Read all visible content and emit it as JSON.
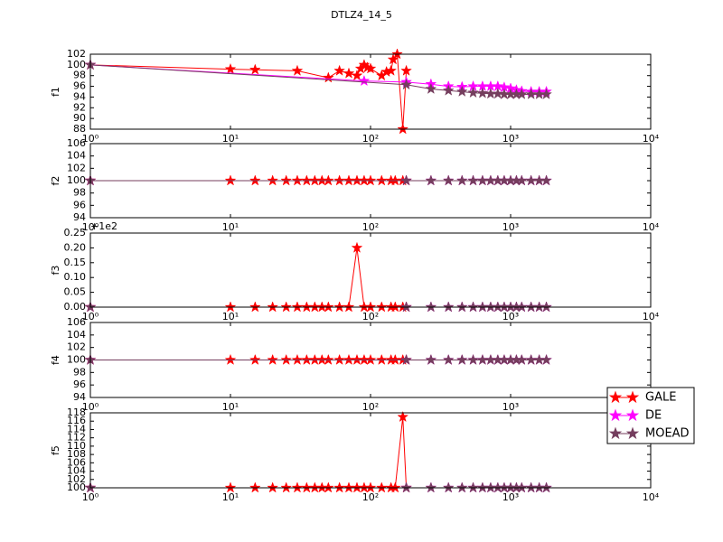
{
  "chart_data": [
    {
      "type": "line",
      "title": "DTLZ4_14_5",
      "ylabel": "f1",
      "xscale": "log",
      "xlim": [
        1,
        10000
      ],
      "xticks": [
        {
          "value": 1,
          "label": "10⁰"
        },
        {
          "value": 10,
          "label": "10¹"
        },
        {
          "value": 100,
          "label": "10²"
        },
        {
          "value": 1000,
          "label": "10³"
        },
        {
          "value": 10000,
          "label": "10⁴"
        }
      ],
      "ylim": [
        88,
        102
      ],
      "yticks": [
        88,
        90,
        92,
        94,
        96,
        98,
        100,
        102
      ],
      "series": [
        {
          "name": "GALE",
          "color": "#ff0000",
          "x": [
            1,
            10,
            15,
            30,
            50,
            60,
            70,
            80,
            85,
            90,
            95,
            100,
            120,
            130,
            140,
            145,
            155,
            170,
            180
          ],
          "values": [
            100,
            99.2,
            99.1,
            98.9,
            97.6,
            98.9,
            98.4,
            98,
            99.3,
            100,
            99.5,
            99.3,
            98,
            98.7,
            98.9,
            101,
            102,
            88,
            98.9
          ]
        },
        {
          "name": "DE",
          "color": "#ff00ff",
          "x": [
            1,
            90,
            180,
            270,
            360,
            450,
            540,
            630,
            720,
            810,
            900,
            1000,
            1100,
            1200,
            1400,
            1600,
            1800
          ],
          "values": [
            100,
            97,
            96.8,
            96.4,
            96,
            95.9,
            96,
            96,
            96,
            96,
            95.8,
            95.6,
            95.3,
            95.1,
            95,
            95,
            95
          ]
        },
        {
          "name": "MOEAD",
          "color": "#753e5e",
          "x": [
            1,
            180,
            270,
            360,
            450,
            540,
            630,
            720,
            810,
            900,
            1000,
            1100,
            1200,
            1400,
            1600,
            1800
          ],
          "values": [
            100,
            96.3,
            95.5,
            95.2,
            95,
            94.8,
            94.7,
            94.6,
            94.6,
            94.5,
            94.5,
            94.5,
            94.5,
            94.5,
            94.5,
            94.5
          ]
        }
      ]
    },
    {
      "type": "line",
      "ylabel": "f2",
      "xscale": "log",
      "xlim": [
        1,
        10000
      ],
      "xticks": [
        {
          "value": 1,
          "label": "10⁰"
        },
        {
          "value": 10,
          "label": "10¹"
        },
        {
          "value": 100,
          "label": "10²"
        },
        {
          "value": 1000,
          "label": "10³"
        },
        {
          "value": 10000,
          "label": "10⁴"
        }
      ],
      "ylim": [
        94,
        106
      ],
      "yticks": [
        94,
        96,
        98,
        100,
        102,
        104,
        106
      ],
      "series": [
        {
          "name": "GALE",
          "color": "#ff0000",
          "x": [
            1,
            10,
            15,
            20,
            25,
            30,
            35,
            40,
            45,
            50,
            60,
            70,
            80,
            90,
            100,
            120,
            140,
            150,
            170,
            180
          ],
          "values": [
            100,
            100,
            100,
            100,
            100,
            100,
            100,
            100,
            100,
            100,
            100,
            100,
            100,
            100,
            100,
            100,
            100,
            100,
            100,
            100
          ]
        },
        {
          "name": "DE",
          "color": "#ff00ff",
          "x": [
            1,
            180,
            270,
            360,
            450,
            540,
            630,
            720,
            810,
            900,
            1000,
            1100,
            1200,
            1400,
            1600,
            1800
          ],
          "values": [
            100,
            100,
            100,
            100,
            100,
            100,
            100,
            100,
            100,
            100,
            100,
            100,
            100,
            100,
            100,
            100
          ]
        },
        {
          "name": "MOEAD",
          "color": "#753e5e",
          "x": [
            1,
            180,
            270,
            360,
            450,
            540,
            630,
            720,
            810,
            900,
            1000,
            1100,
            1200,
            1400,
            1600,
            1800
          ],
          "values": [
            100,
            100,
            100,
            100,
            100,
            100,
            100,
            100,
            100,
            100,
            100,
            100,
            100,
            100,
            100,
            100
          ]
        }
      ]
    },
    {
      "type": "line",
      "ylabel": "f3",
      "xscale": "log",
      "offset_label": "+1e2",
      "xlim": [
        1,
        10000
      ],
      "xticks": [
        {
          "value": 1,
          "label": "10⁰"
        },
        {
          "value": 10,
          "label": "10¹"
        },
        {
          "value": 100,
          "label": "10²"
        },
        {
          "value": 1000,
          "label": "10³"
        },
        {
          "value": 10000,
          "label": "10⁴"
        }
      ],
      "ylim": [
        0,
        0.25
      ],
      "yticks": [
        {
          "value": 0,
          "label": "0.00"
        },
        0.05,
        {
          "value": 0.1,
          "label": "0.10"
        },
        0.15,
        {
          "value": 0.2,
          "label": "0.20"
        },
        0.25
      ],
      "series": [
        {
          "name": "GALE",
          "color": "#ff0000",
          "x": [
            1,
            10,
            15,
            20,
            25,
            30,
            35,
            40,
            45,
            50,
            60,
            70,
            80,
            90,
            100,
            120,
            140,
            150,
            170,
            180
          ],
          "values": [
            0,
            0,
            0,
            0,
            0,
            0,
            0,
            0,
            0,
            0,
            0,
            0,
            0.2,
            0,
            0,
            0,
            0,
            0,
            0,
            0
          ]
        },
        {
          "name": "DE",
          "color": "#ff00ff",
          "x": [
            1,
            180,
            270,
            360,
            450,
            540,
            630,
            720,
            810,
            900,
            1000,
            1100,
            1200,
            1400,
            1600,
            1800
          ],
          "values": [
            0,
            0,
            0,
            0,
            0,
            0,
            0,
            0,
            0,
            0,
            0,
            0,
            0,
            0,
            0,
            0
          ]
        },
        {
          "name": "MOEAD",
          "color": "#753e5e",
          "x": [
            1,
            180,
            270,
            360,
            450,
            540,
            630,
            720,
            810,
            900,
            1000,
            1100,
            1200,
            1400,
            1600,
            1800
          ],
          "values": [
            0,
            0,
            0,
            0,
            0,
            0,
            0,
            0,
            0,
            0,
            0,
            0,
            0,
            0,
            0,
            0
          ]
        }
      ]
    },
    {
      "type": "line",
      "ylabel": "f4",
      "xscale": "log",
      "xlim": [
        1,
        10000
      ],
      "xticks": [
        {
          "value": 1,
          "label": "10⁰"
        },
        {
          "value": 10,
          "label": "10¹"
        },
        {
          "value": 100,
          "label": "10²"
        },
        {
          "value": 1000,
          "label": "10³"
        },
        {
          "value": 10000,
          "label": "10⁴"
        }
      ],
      "ylim": [
        94,
        106
      ],
      "yticks": [
        94,
        96,
        98,
        100,
        102,
        104,
        106
      ],
      "series": [
        {
          "name": "GALE",
          "color": "#ff0000",
          "x": [
            1,
            10,
            15,
            20,
            25,
            30,
            35,
            40,
            45,
            50,
            60,
            70,
            80,
            90,
            100,
            120,
            140,
            150,
            170,
            180
          ],
          "values": [
            100,
            100,
            100,
            100,
            100,
            100,
            100,
            100,
            100,
            100,
            100,
            100,
            100,
            100,
            100,
            100,
            100,
            100,
            100,
            100
          ]
        },
        {
          "name": "DE",
          "color": "#ff00ff",
          "x": [
            1,
            180,
            270,
            360,
            450,
            540,
            630,
            720,
            810,
            900,
            1000,
            1100,
            1200,
            1400,
            1600,
            1800
          ],
          "values": [
            100,
            100,
            100,
            100,
            100,
            100,
            100,
            100,
            100,
            100,
            100,
            100,
            100,
            100,
            100,
            100
          ]
        },
        {
          "name": "MOEAD",
          "color": "#753e5e",
          "x": [
            1,
            180,
            270,
            360,
            450,
            540,
            630,
            720,
            810,
            900,
            1000,
            1100,
            1200,
            1400,
            1600,
            1800
          ],
          "values": [
            100,
            100,
            100,
            100,
            100,
            100,
            100,
            100,
            100,
            100,
            100,
            100,
            100,
            100,
            100,
            100
          ]
        }
      ]
    },
    {
      "type": "line",
      "ylabel": "f5",
      "xscale": "log",
      "legend": "right",
      "xlim": [
        1,
        10000
      ],
      "xticks": [
        {
          "value": 1,
          "label": "10⁰"
        },
        {
          "value": 10,
          "label": "10¹"
        },
        {
          "value": 100,
          "label": "10²"
        },
        {
          "value": 1000,
          "label": "10³"
        },
        {
          "value": 10000,
          "label": "10⁴"
        }
      ],
      "ylim": [
        100,
        118
      ],
      "yticks": [
        100,
        102,
        104,
        106,
        108,
        110,
        112,
        114,
        116,
        118
      ],
      "series": [
        {
          "name": "GALE",
          "color": "#ff0000",
          "x": [
            1,
            10,
            15,
            20,
            25,
            30,
            35,
            40,
            45,
            50,
            60,
            70,
            80,
            90,
            100,
            120,
            140,
            150,
            170,
            180
          ],
          "values": [
            100,
            100,
            100,
            100,
            100,
            100,
            100,
            100,
            100,
            100,
            100,
            100,
            100,
            100,
            100,
            100,
            100,
            100,
            117,
            100
          ]
        },
        {
          "name": "DE",
          "color": "#ff00ff",
          "x": [
            1,
            180,
            270,
            360,
            450,
            540,
            630,
            720,
            810,
            900,
            1000,
            1100,
            1200,
            1400,
            1600,
            1800
          ],
          "values": [
            100,
            100,
            100,
            100,
            100,
            100,
            100,
            100,
            100,
            100,
            100,
            100,
            100,
            100,
            100,
            100
          ]
        },
        {
          "name": "MOEAD",
          "color": "#753e5e",
          "x": [
            1,
            180,
            270,
            360,
            450,
            540,
            630,
            720,
            810,
            900,
            1000,
            1100,
            1200,
            1400,
            1600,
            1800
          ],
          "values": [
            100,
            100,
            100,
            100,
            100,
            100,
            100,
            100,
            100,
            100,
            100,
            100,
            100,
            100,
            100,
            100
          ]
        }
      ]
    }
  ]
}
